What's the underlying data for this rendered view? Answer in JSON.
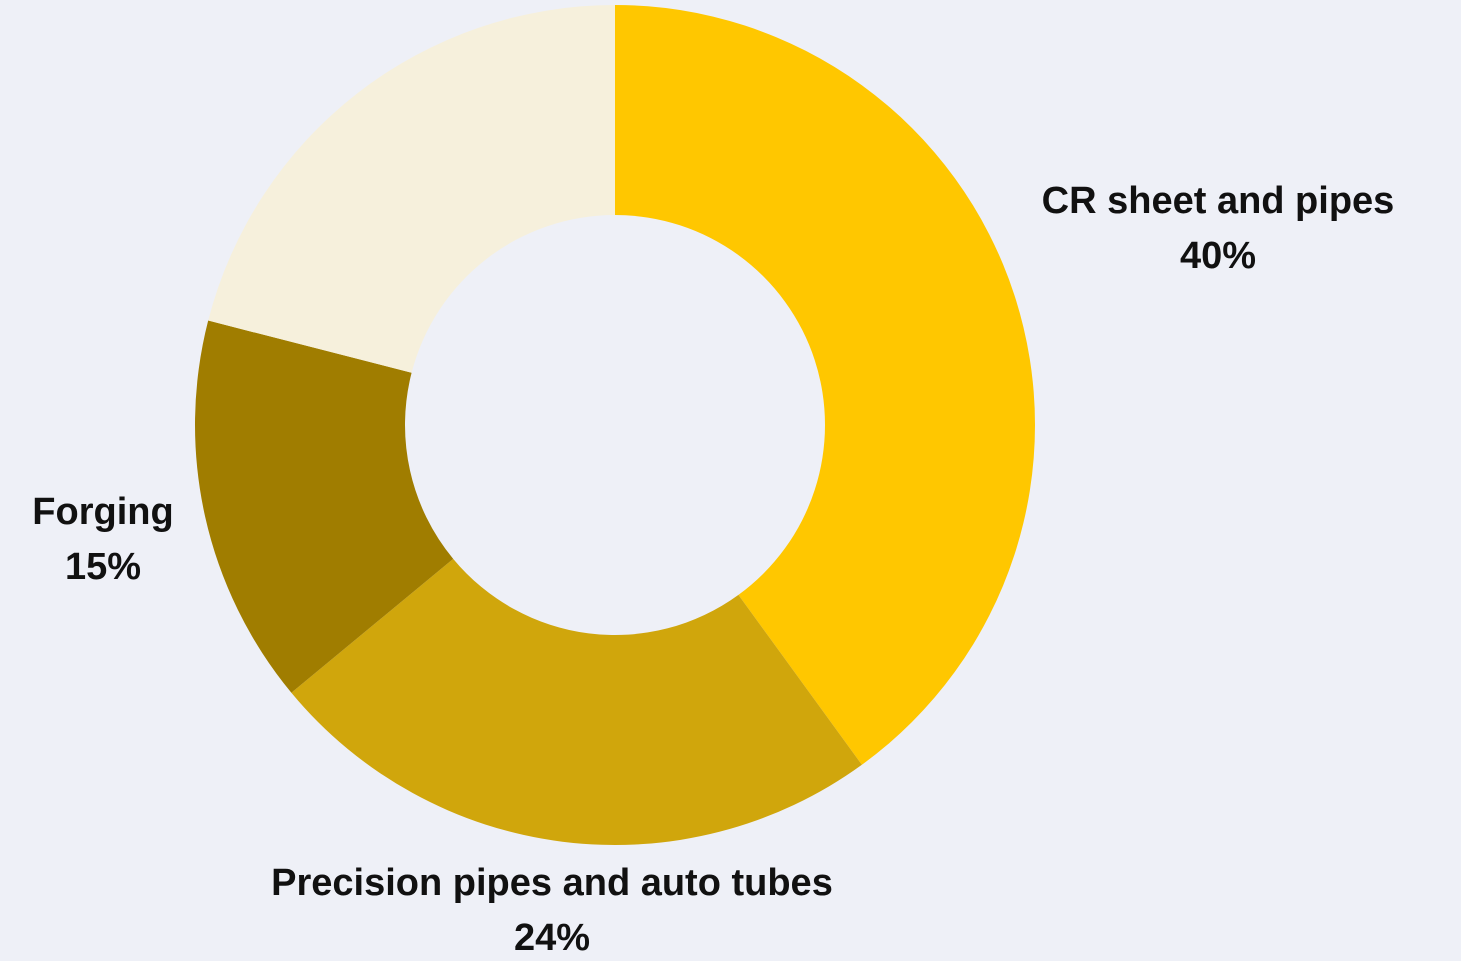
{
  "chart_data": {
    "type": "donut",
    "categories": [
      "CR sheet and pipes",
      "Precision pipes and auto tubes",
      "Forging",
      null
    ],
    "values": [
      40,
      24,
      15,
      21
    ],
    "value_labels": [
      "40%",
      "24%",
      "15%",
      null
    ],
    "colors": [
      "#ffc700",
      "#d0a60c",
      "#a07d00",
      "#f6f0dc"
    ]
  }
}
